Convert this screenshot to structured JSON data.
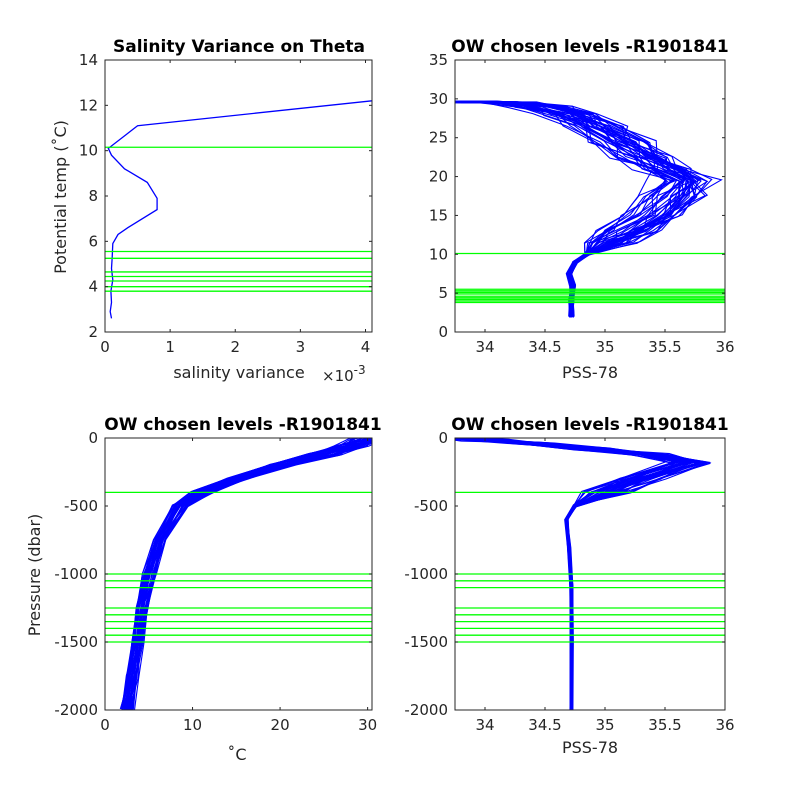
{
  "colors": {
    "profile": "#0000ff",
    "level": "#00ff00",
    "axis": "#262626"
  },
  "chart_data": [
    {
      "type": "line",
      "title": "Salinity Variance on Theta",
      "xlabel": "salinity variance",
      "x_exponent": "×10",
      "x_exponent_power": "-3",
      "ylabel": "Potential temp (˚C)",
      "xlim": [
        0,
        4.1
      ],
      "ylim": [
        2,
        14
      ],
      "xticks": [
        {
          "v": 0,
          "t": "0"
        },
        {
          "v": 1,
          "t": "1"
        },
        {
          "v": 2,
          "t": "2"
        },
        {
          "v": 3,
          "t": "3"
        },
        {
          "v": 4,
          "t": "4"
        }
      ],
      "yticks": [
        {
          "v": 2,
          "t": "2"
        },
        {
          "v": 4,
          "t": "4"
        },
        {
          "v": 6,
          "t": "6"
        },
        {
          "v": 8,
          "t": "8"
        },
        {
          "v": 10,
          "t": "10"
        },
        {
          "v": 12,
          "t": "12"
        },
        {
          "v": 14,
          "t": "14"
        }
      ],
      "series": [
        {
          "points": [
            [
              0.1,
              2.6
            ],
            [
              0.08,
              2.9
            ],
            [
              0.1,
              3.3
            ],
            [
              0.09,
              3.8
            ],
            [
              0.12,
              4.3
            ],
            [
              0.1,
              4.8
            ],
            [
              0.11,
              5.3
            ],
            [
              0.12,
              5.9
            ],
            [
              0.2,
              6.3
            ],
            [
              0.35,
              6.6
            ],
            [
              0.8,
              7.4
            ],
            [
              0.8,
              7.9
            ],
            [
              0.65,
              8.6
            ],
            [
              0.3,
              9.2
            ],
            [
              0.1,
              9.8
            ],
            [
              0.05,
              10.1
            ],
            [
              0.5,
              11.1
            ],
            [
              4.1,
              12.2
            ]
          ]
        }
      ],
      "hlines": [
        10.15,
        5.55,
        5.25,
        4.65,
        4.45,
        4.25,
        4.0,
        3.8
      ]
    },
    {
      "type": "line",
      "title": "OW chosen levels -R1901841",
      "xlabel": "PSS-78",
      "ylabel": "",
      "xlim": [
        33.75,
        36
      ],
      "ylim": [
        0,
        35
      ],
      "xticks": [
        {
          "v": 34,
          "t": "34"
        },
        {
          "v": 34.5,
          "t": "34.5"
        },
        {
          "v": 35,
          "t": "35"
        },
        {
          "v": 35.5,
          "t": "35.5"
        },
        {
          "v": 36,
          "t": "36"
        }
      ],
      "yticks": [
        {
          "v": 0,
          "t": "0"
        },
        {
          "v": 5,
          "t": "5"
        },
        {
          "v": 10,
          "t": "10"
        },
        {
          "v": 15,
          "t": "15"
        },
        {
          "v": 20,
          "t": "20"
        },
        {
          "v": 25,
          "t": "25"
        },
        {
          "v": 30,
          "t": "30"
        },
        {
          "v": 35,
          "t": "35"
        }
      ],
      "profile_count": 40,
      "mean_profile": [
        [
          34.72,
          2.0
        ],
        [
          34.72,
          4.0
        ],
        [
          34.73,
          6.0
        ],
        [
          34.7,
          7.5
        ],
        [
          34.75,
          9.0
        ],
        [
          34.85,
          10.0
        ],
        [
          35.0,
          11.5
        ],
        [
          35.2,
          13.0
        ],
        [
          35.4,
          15.0
        ],
        [
          35.55,
          17.5
        ],
        [
          35.65,
          19.5
        ],
        [
          35.5,
          21.0
        ],
        [
          35.3,
          22.5
        ],
        [
          35.1,
          24.5
        ],
        [
          34.9,
          26.5
        ],
        [
          34.7,
          28.0
        ],
        [
          34.45,
          29.0
        ],
        [
          34.2,
          29.5
        ],
        [
          33.95,
          29.6
        ],
        [
          33.75,
          29.6
        ]
      ],
      "hlines": [
        10.1,
        5.5,
        5.3,
        5.1,
        4.9,
        4.6,
        4.4,
        4.2,
        4.0,
        3.8
      ]
    },
    {
      "type": "line",
      "title": "OW chosen levels -R1901841",
      "xlabel": "˚C",
      "ylabel": "Pressure (dbar)",
      "xlim": [
        0,
        30.5
      ],
      "ylim": [
        -2000,
        0
      ],
      "xticks": [
        {
          "v": 0,
          "t": "0"
        },
        {
          "v": 10,
          "t": "10"
        },
        {
          "v": 20,
          "t": "20"
        },
        {
          "v": 30,
          "t": "30"
        }
      ],
      "yticks": [
        {
          "v": -2000,
          "t": "-2000"
        },
        {
          "v": -1500,
          "t": "-1500"
        },
        {
          "v": -1000,
          "t": "-1000"
        },
        {
          "v": -500,
          "t": "-500"
        },
        {
          "v": 0,
          "t": "0"
        }
      ],
      "profile_count": 40,
      "mean_profile": [
        [
          2.5,
          -2000
        ],
        [
          3.0,
          -1750
        ],
        [
          3.6,
          -1500
        ],
        [
          4.2,
          -1250
        ],
        [
          5.0,
          -1000
        ],
        [
          6.2,
          -750
        ],
        [
          8.5,
          -500
        ],
        [
          11.0,
          -400
        ],
        [
          15.0,
          -300
        ],
        [
          20.0,
          -200
        ],
        [
          25.0,
          -120
        ],
        [
          28.0,
          -60
        ],
        [
          29.5,
          -20
        ],
        [
          30.0,
          0
        ]
      ],
      "hlines": [
        -400,
        -1000,
        -1050,
        -1100,
        -1250,
        -1300,
        -1350,
        -1400,
        -1450,
        -1500
      ]
    },
    {
      "type": "line",
      "title": "OW chosen levels -R1901841",
      "xlabel": "PSS-78",
      "ylabel": "",
      "xlim": [
        33.75,
        36
      ],
      "ylim": [
        -2000,
        0
      ],
      "xticks": [
        {
          "v": 34,
          "t": "34"
        },
        {
          "v": 34.5,
          "t": "34.5"
        },
        {
          "v": 35,
          "t": "35"
        },
        {
          "v": 35.5,
          "t": "35.5"
        },
        {
          "v": 36,
          "t": "36"
        }
      ],
      "yticks": [
        {
          "v": -2000,
          "t": "-2000"
        },
        {
          "v": -1500,
          "t": "-1500"
        },
        {
          "v": -1000,
          "t": "-1000"
        },
        {
          "v": -500,
          "t": "-500"
        },
        {
          "v": 0,
          "t": "0"
        }
      ],
      "profile_count": 40,
      "mean_profile": [
        [
          34.72,
          -2000
        ],
        [
          34.72,
          -1500
        ],
        [
          34.72,
          -1100
        ],
        [
          34.7,
          -800
        ],
        [
          34.68,
          -600
        ],
        [
          34.75,
          -500
        ],
        [
          35.0,
          -400
        ],
        [
          35.3,
          -300
        ],
        [
          35.7,
          -180
        ],
        [
          35.4,
          -120
        ],
        [
          34.9,
          -80
        ],
        [
          34.4,
          -40
        ],
        [
          34.0,
          -15
        ],
        [
          33.75,
          0
        ]
      ],
      "hlines": [
        -400,
        -1000,
        -1050,
        -1100,
        -1250,
        -1300,
        -1350,
        -1400,
        -1450,
        -1500
      ]
    }
  ]
}
